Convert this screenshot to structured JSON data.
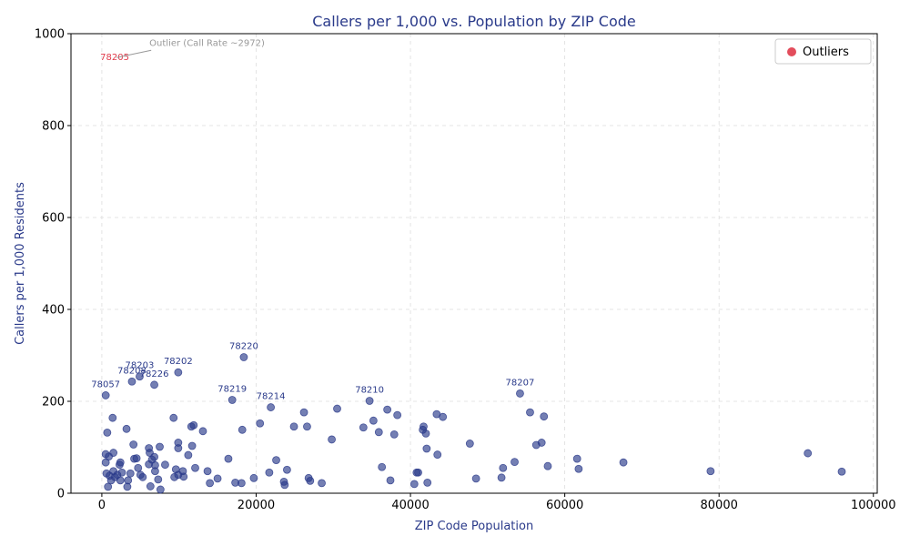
{
  "chart_data": {
    "type": "scatter",
    "title": "Callers per 1,000 vs. Population by ZIP Code",
    "xlabel": "ZIP Code Population",
    "ylabel": "Callers per 1,000 Residents",
    "xlim": [
      -4000,
      100500
    ],
    "ylim": [
      0,
      1000
    ],
    "xticks": [
      0,
      20000,
      40000,
      60000,
      80000,
      100000
    ],
    "yticks": [
      0,
      200,
      400,
      600,
      800,
      1000
    ],
    "grid": true,
    "legend": {
      "position": "top-right",
      "entries": [
        "Outliers"
      ]
    },
    "colors": {
      "points": "#2a3a8a",
      "outlier": "#e03a4a",
      "title": "#2a3a8a",
      "note": "#999999",
      "grid": "#dddddd"
    },
    "labeled_points": [
      {
        "label": "78220",
        "x": 18400,
        "y": 296
      },
      {
        "label": "78202",
        "x": 9900,
        "y": 263
      },
      {
        "label": "78203",
        "x": 4900,
        "y": 254
      },
      {
        "label": "78208",
        "x": 3900,
        "y": 243
      },
      {
        "label": "78226",
        "x": 6800,
        "y": 236
      },
      {
        "label": "78057",
        "x": 500,
        "y": 213
      },
      {
        "label": "78219",
        "x": 16900,
        "y": 203
      },
      {
        "label": "78214",
        "x": 21900,
        "y": 187
      },
      {
        "label": "78210",
        "x": 34700,
        "y": 201
      },
      {
        "label": "78207",
        "x": 54200,
        "y": 217
      }
    ],
    "outlier": {
      "label": "78205",
      "x": 1800,
      "y": 950,
      "note": "Outlier (Call Rate ~2972)"
    },
    "points": [
      [
        500,
        85
      ],
      [
        700,
        132
      ],
      [
        900,
        80
      ],
      [
        500,
        67
      ],
      [
        1500,
        88
      ],
      [
        1400,
        164
      ],
      [
        600,
        43
      ],
      [
        1000,
        38
      ],
      [
        1200,
        28
      ],
      [
        1500,
        48
      ],
      [
        1700,
        35
      ],
      [
        2000,
        40
      ],
      [
        2300,
        62
      ],
      [
        2400,
        67
      ],
      [
        2600,
        45
      ],
      [
        2400,
        28
      ],
      [
        3200,
        140
      ],
      [
        3300,
        14
      ],
      [
        3400,
        28
      ],
      [
        3700,
        43
      ],
      [
        4100,
        106
      ],
      [
        4200,
        75
      ],
      [
        4500,
        76
      ],
      [
        4700,
        55
      ],
      [
        5000,
        40
      ],
      [
        5300,
        35
      ],
      [
        6100,
        98
      ],
      [
        6100,
        63
      ],
      [
        6200,
        88
      ],
      [
        6300,
        15
      ],
      [
        6500,
        73
      ],
      [
        6800,
        79
      ],
      [
        6900,
        48
      ],
      [
        6900,
        61
      ],
      [
        7300,
        30
      ],
      [
        7500,
        101
      ],
      [
        7600,
        8
      ],
      [
        8200,
        62
      ],
      [
        800,
        14
      ],
      [
        9300,
        164
      ],
      [
        9400,
        35
      ],
      [
        9600,
        52
      ],
      [
        9900,
        110
      ],
      [
        9900,
        98
      ],
      [
        9900,
        40
      ],
      [
        10500,
        48
      ],
      [
        10600,
        36
      ],
      [
        11200,
        83
      ],
      [
        11600,
        145
      ],
      [
        11700,
        103
      ],
      [
        11900,
        148
      ],
      [
        12100,
        55
      ],
      [
        13100,
        135
      ],
      [
        13700,
        48
      ],
      [
        14000,
        22
      ],
      [
        15000,
        32
      ],
      [
        16400,
        75
      ],
      [
        17300,
        23
      ],
      [
        18100,
        22
      ],
      [
        18200,
        138
      ],
      [
        19700,
        33
      ],
      [
        20500,
        152
      ],
      [
        21700,
        45
      ],
      [
        22600,
        72
      ],
      [
        23600,
        25
      ],
      [
        23700,
        18
      ],
      [
        24000,
        51
      ],
      [
        24900,
        145
      ],
      [
        26200,
        176
      ],
      [
        26600,
        145
      ],
      [
        26800,
        33
      ],
      [
        27000,
        27
      ],
      [
        28500,
        22
      ],
      [
        29800,
        117
      ],
      [
        30500,
        184
      ],
      [
        33900,
        143
      ],
      [
        35200,
        158
      ],
      [
        35900,
        133
      ],
      [
        36300,
        57
      ],
      [
        37000,
        182
      ],
      [
        37400,
        28
      ],
      [
        37900,
        128
      ],
      [
        38300,
        170
      ],
      [
        40500,
        20
      ],
      [
        40800,
        45
      ],
      [
        41000,
        45
      ],
      [
        41600,
        138
      ],
      [
        41700,
        145
      ],
      [
        42000,
        130
      ],
      [
        42100,
        97
      ],
      [
        42200,
        23
      ],
      [
        43400,
        172
      ],
      [
        43500,
        84
      ],
      [
        44200,
        166
      ],
      [
        47700,
        108
      ],
      [
        48500,
        32
      ],
      [
        51800,
        34
      ],
      [
        52000,
        55
      ],
      [
        53500,
        68
      ],
      [
        55500,
        176
      ],
      [
        56300,
        105
      ],
      [
        57000,
        110
      ],
      [
        57300,
        167
      ],
      [
        57800,
        59
      ],
      [
        61600,
        75
      ],
      [
        61800,
        53
      ],
      [
        67600,
        67
      ],
      [
        78900,
        48
      ],
      [
        91500,
        87
      ],
      [
        95900,
        47
      ]
    ]
  }
}
